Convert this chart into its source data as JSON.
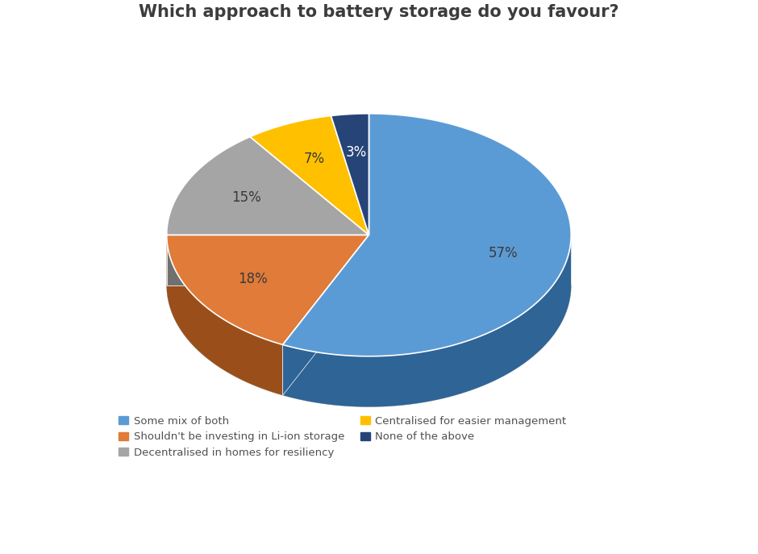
{
  "title": "Which approach to battery storage do you favour?",
  "slices": [
    57,
    18,
    15,
    7,
    3
  ],
  "pct_labels": [
    "57%",
    "18%",
    "15%",
    "7%",
    "3%"
  ],
  "colors": [
    "#5B9BD5",
    "#E07B39",
    "#A5A5A5",
    "#FFC000",
    "#264478"
  ],
  "side_colors": [
    "#2E6496",
    "#9A4F1A",
    "#707070",
    "#B38600",
    "#152540"
  ],
  "legend_labels": [
    "Some mix of both",
    "Shouldn't be investing in Li-ion storage",
    "Decentralised in homes for resiliency",
    "Centralised for easier management",
    "None of the above"
  ],
  "legend_colors": [
    "#5B9BD5",
    "#E07B39",
    "#A5A5A5",
    "#FFC000",
    "#264478"
  ],
  "title_fontsize": 15,
  "label_fontsize": 12,
  "background_color": "#FFFFFF"
}
